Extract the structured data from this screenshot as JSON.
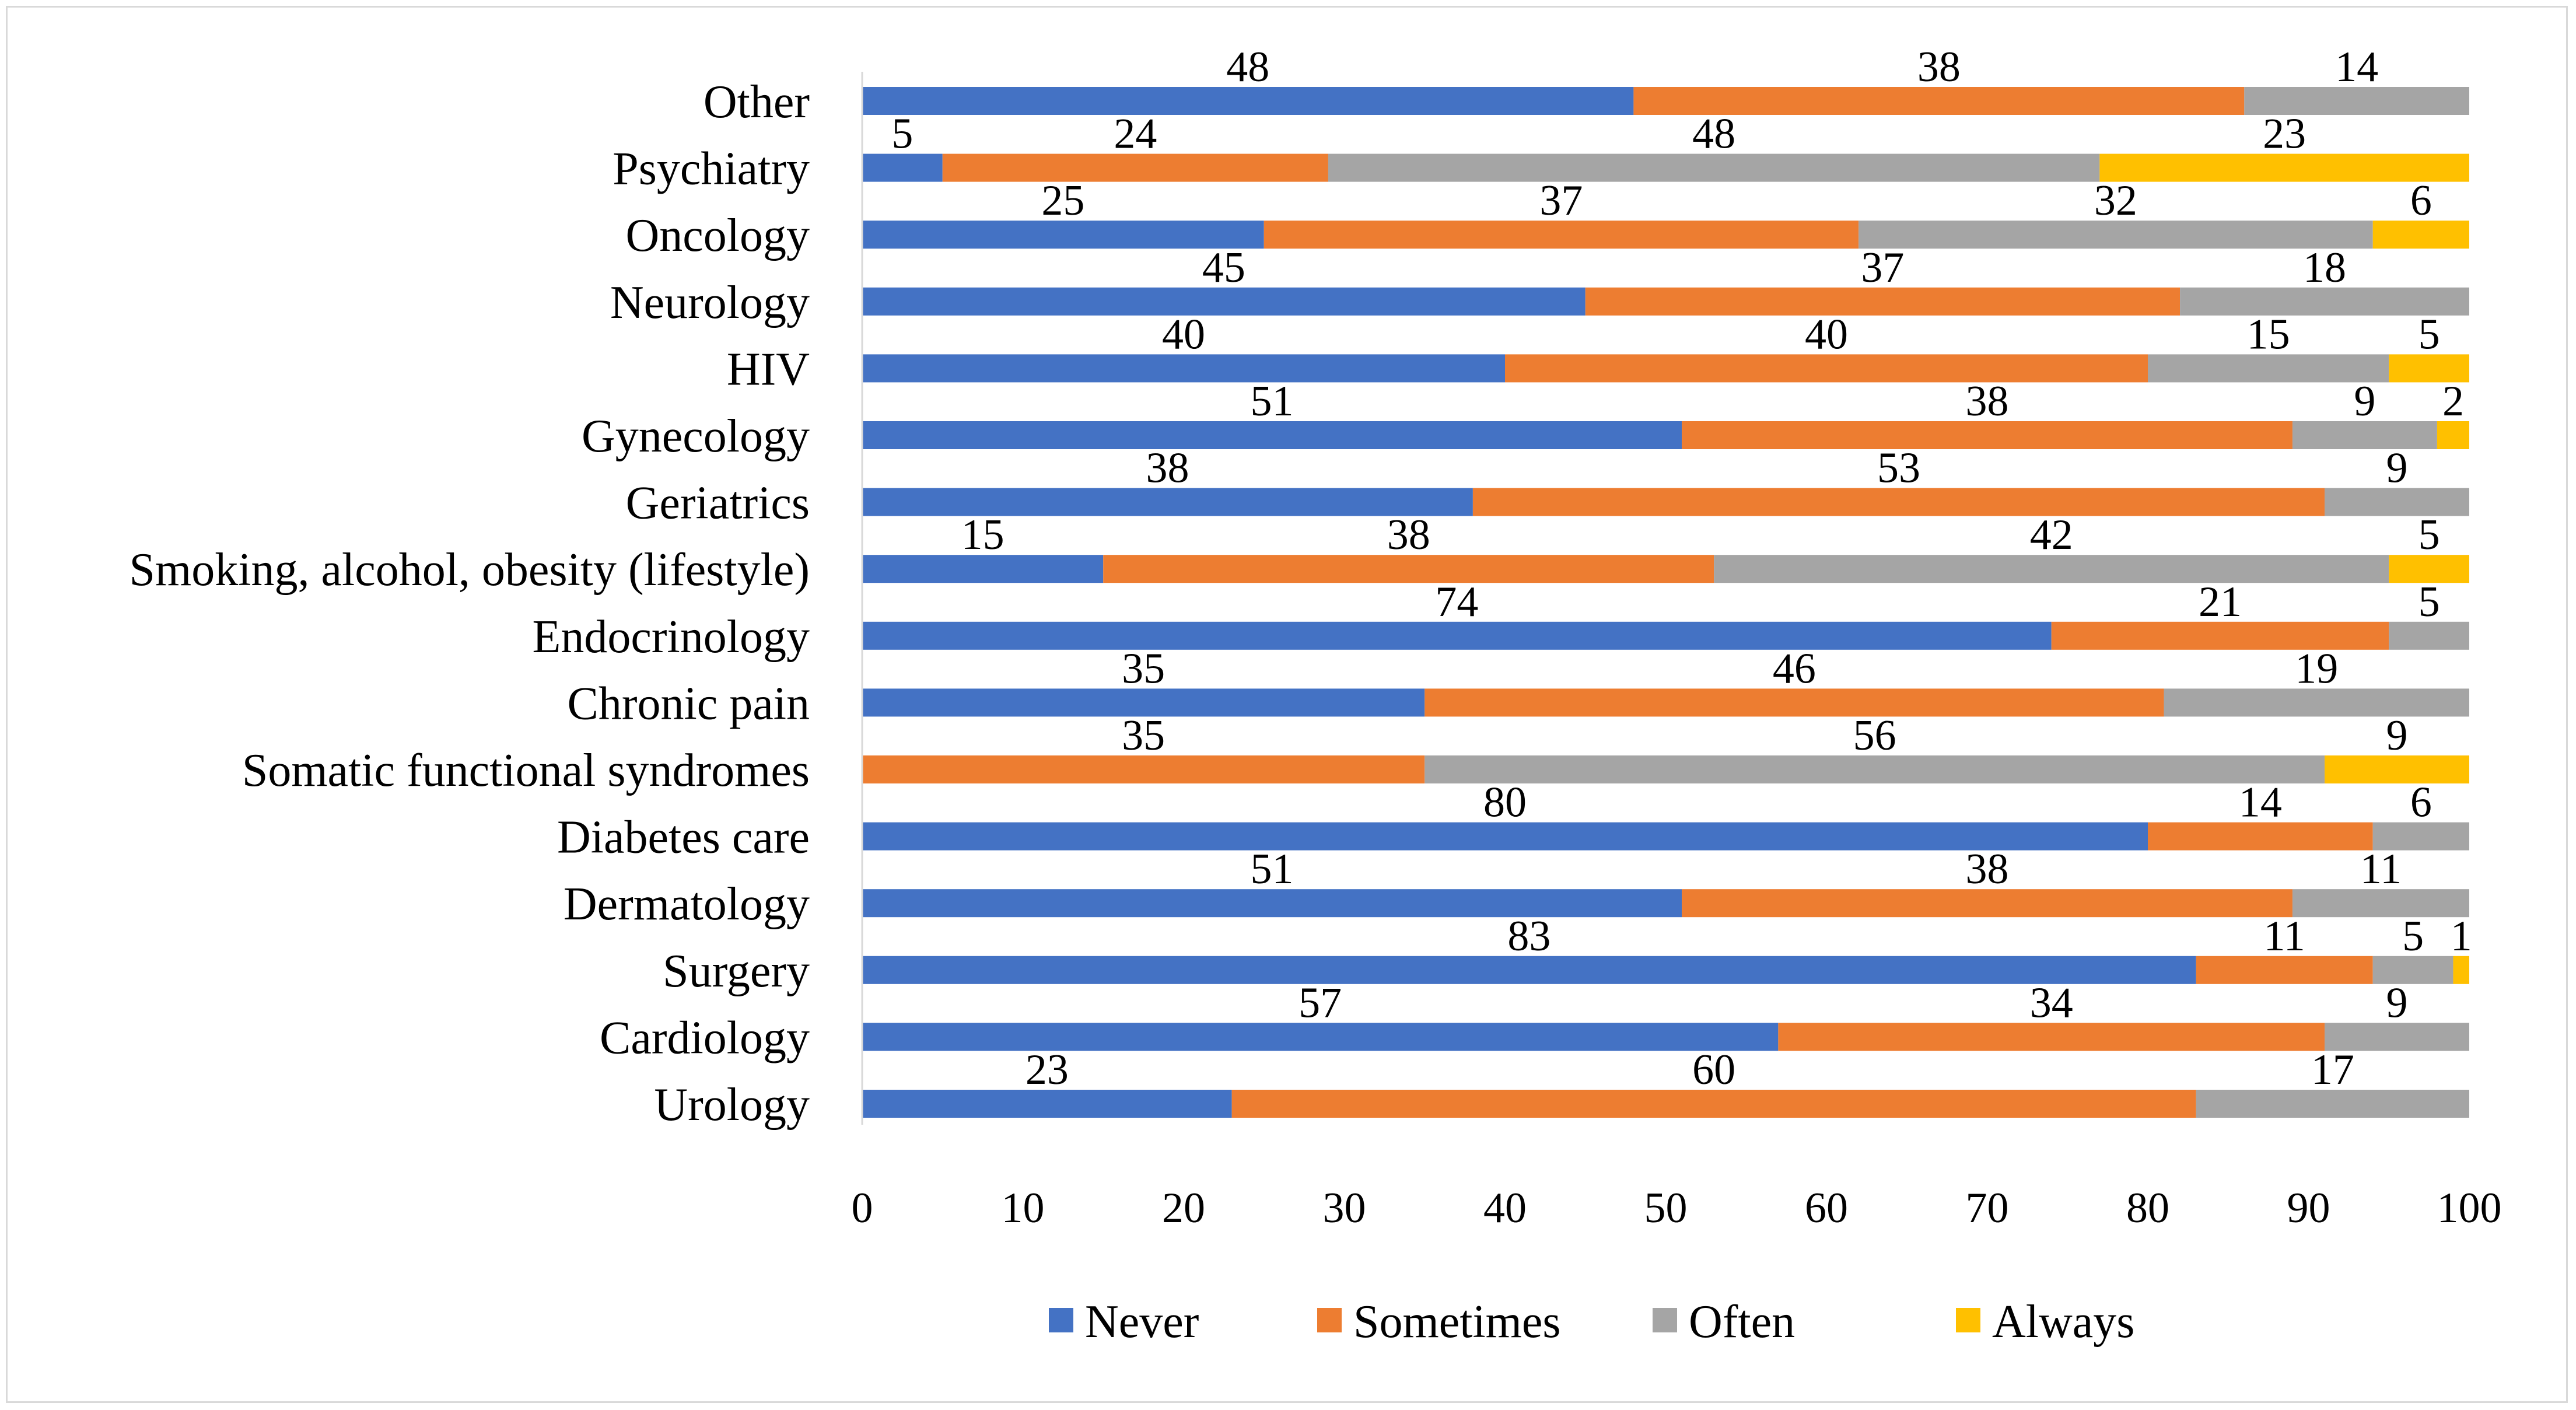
{
  "chart_data": {
    "type": "bar",
    "orientation": "horizontal",
    "stacked": true,
    "title": "",
    "xlabel": "",
    "ylabel": "",
    "xlim": [
      0,
      100
    ],
    "x_ticks": [
      0,
      10,
      20,
      30,
      40,
      50,
      60,
      70,
      80,
      90,
      100
    ],
    "grid": false,
    "legend_position": "bottom",
    "categories": [
      "Other",
      "Psychiatry",
      "Oncology",
      "Neurology",
      "HIV",
      "Gynecology",
      "Geriatrics",
      "Smoking, alcohol, obesity (lifestyle)",
      "Endocrinology",
      "Chronic pain",
      "Somatic functional syndromes",
      "Diabetes care",
      "Dermatology",
      "Surgery",
      "Cardiology",
      "Urology"
    ],
    "series": [
      {
        "name": "Never",
        "color": "#4472C4",
        "values": [
          48,
          5,
          25,
          45,
          40,
          51,
          38,
          15,
          74,
          35,
          0,
          80,
          51,
          83,
          57,
          23
        ]
      },
      {
        "name": "Sometimes",
        "color": "#ED7D31",
        "values": [
          38,
          24,
          37,
          37,
          40,
          38,
          53,
          38,
          21,
          46,
          35,
          14,
          38,
          11,
          34,
          60
        ]
      },
      {
        "name": "Often",
        "color": "#A5A5A5",
        "values": [
          14,
          48,
          32,
          18,
          15,
          9,
          9,
          42,
          5,
          19,
          56,
          6,
          11,
          5,
          9,
          17
        ]
      },
      {
        "name": "Always",
        "color": "#FFC000",
        "values": [
          0,
          23,
          6,
          0,
          5,
          2,
          0,
          5,
          0,
          0,
          9,
          0,
          0,
          1,
          0,
          0
        ]
      }
    ]
  }
}
